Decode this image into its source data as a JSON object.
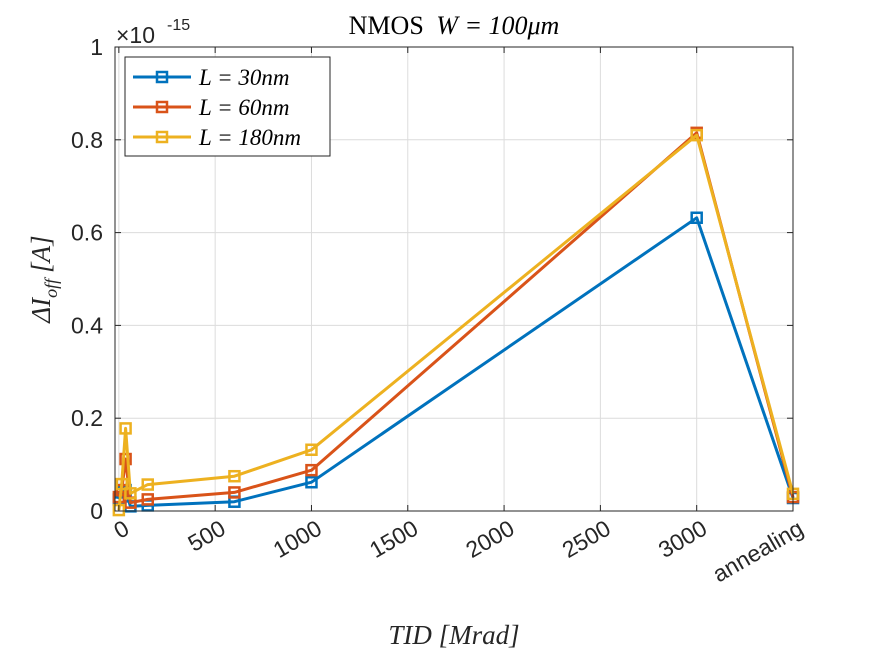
{
  "chart_data": {
    "type": "line",
    "title": "NMOS W = 100μm",
    "title_prefix": "NMOS",
    "title_math": "W = 100μm",
    "xlabel": "TID [Mrad]",
    "ylabel_main": "ΔI",
    "ylabel_sub": "off",
    "ylabel_bracket": "[A]",
    "y_exponent_base": "×10",
    "y_exponent_power": "-15",
    "xlim": [
      -20,
      3500
    ],
    "ylim": [
      0,
      1
    ],
    "x_ticks": [
      {
        "value": 0,
        "label": "0"
      },
      {
        "value": 500,
        "label": "500"
      },
      {
        "value": 1000,
        "label": "1000"
      },
      {
        "value": 1500,
        "label": "1500"
      },
      {
        "value": 2000,
        "label": "2000"
      },
      {
        "value": 2500,
        "label": "2500"
      },
      {
        "value": 3000,
        "label": "3000"
      },
      {
        "value": 3500,
        "label": "annealing"
      }
    ],
    "y_ticks": [
      {
        "value": 0,
        "label": "0"
      },
      {
        "value": 0.2,
        "label": "0.2"
      },
      {
        "value": 0.4,
        "label": "0.4"
      },
      {
        "value": 0.6,
        "label": "0.6"
      },
      {
        "value": 0.8,
        "label": "0.8"
      },
      {
        "value": 1,
        "label": "1"
      }
    ],
    "grid": true,
    "legend_position": "top-left",
    "marker": "square",
    "series": [
      {
        "name": "L = 30nm",
        "color": "#0072BD",
        "points": [
          [
            0,
            0.025
          ],
          [
            15,
            0.04
          ],
          [
            35,
            0.045
          ],
          [
            60,
            0.01
          ],
          [
            150,
            0.012
          ],
          [
            600,
            0.02
          ],
          [
            1000,
            0.062
          ],
          [
            3000,
            0.632
          ],
          [
            3500,
            0.028
          ]
        ]
      },
      {
        "name": "L = 60nm",
        "color": "#D95319",
        "points": [
          [
            0,
            0.03
          ],
          [
            15,
            0.045
          ],
          [
            35,
            0.112
          ],
          [
            60,
            0.018
          ],
          [
            150,
            0.025
          ],
          [
            600,
            0.04
          ],
          [
            1000,
            0.088
          ],
          [
            3000,
            0.815
          ],
          [
            3500,
            0.03
          ]
        ]
      },
      {
        "name": "L = 180nm",
        "color": "#EDB120",
        "points": [
          [
            0,
            0.002
          ],
          [
            15,
            0.058
          ],
          [
            35,
            0.178
          ],
          [
            60,
            0.038
          ],
          [
            150,
            0.057
          ],
          [
            600,
            0.075
          ],
          [
            1000,
            0.132
          ],
          [
            3000,
            0.81
          ],
          [
            3500,
            0.037
          ]
        ]
      }
    ]
  }
}
